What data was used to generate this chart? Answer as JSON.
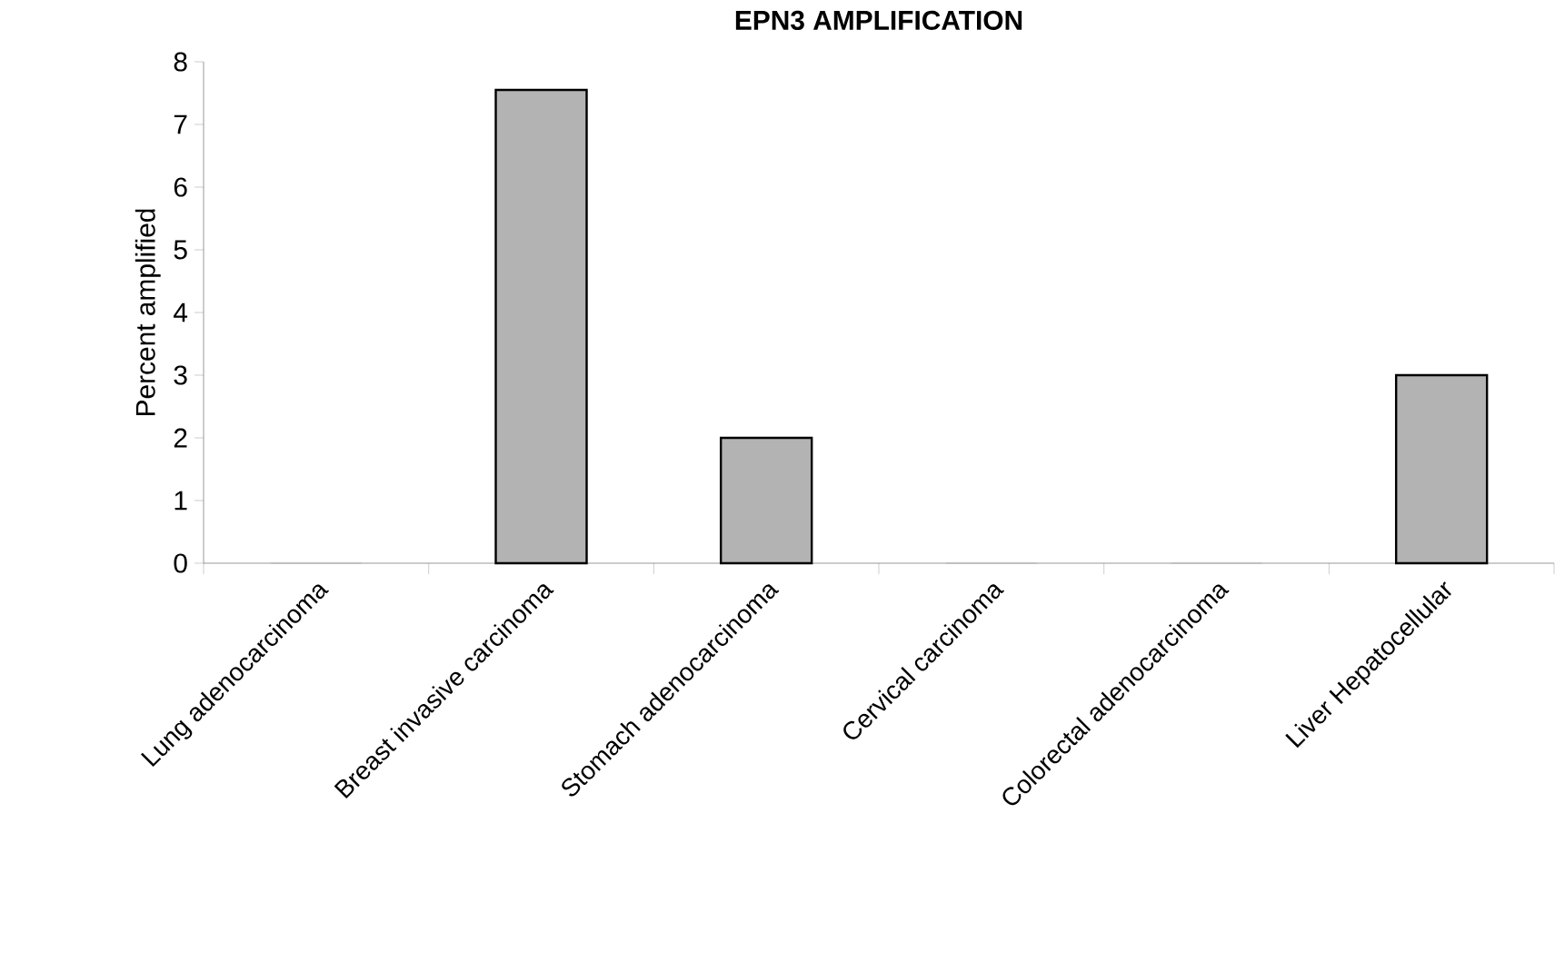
{
  "chart_data": {
    "type": "bar",
    "title": "EPN3 AMPLIFICATION",
    "ylabel": "Percent amplified",
    "categories": [
      "Lung adenocarcinoma",
      "Breast invasive carcinoma",
      "Stomach adenocarcinoma",
      "Cervical carcinoma",
      "Colorectal adenocarcinoma",
      "Liver Hepatocellular"
    ],
    "values": [
      0,
      7.55,
      2,
      0,
      0,
      3
    ],
    "color": "#b3b3b3",
    "ylim": [
      0,
      8
    ],
    "yticks": [
      0,
      1,
      2,
      3,
      4,
      5,
      6,
      7,
      8
    ],
    "grid": false
  }
}
